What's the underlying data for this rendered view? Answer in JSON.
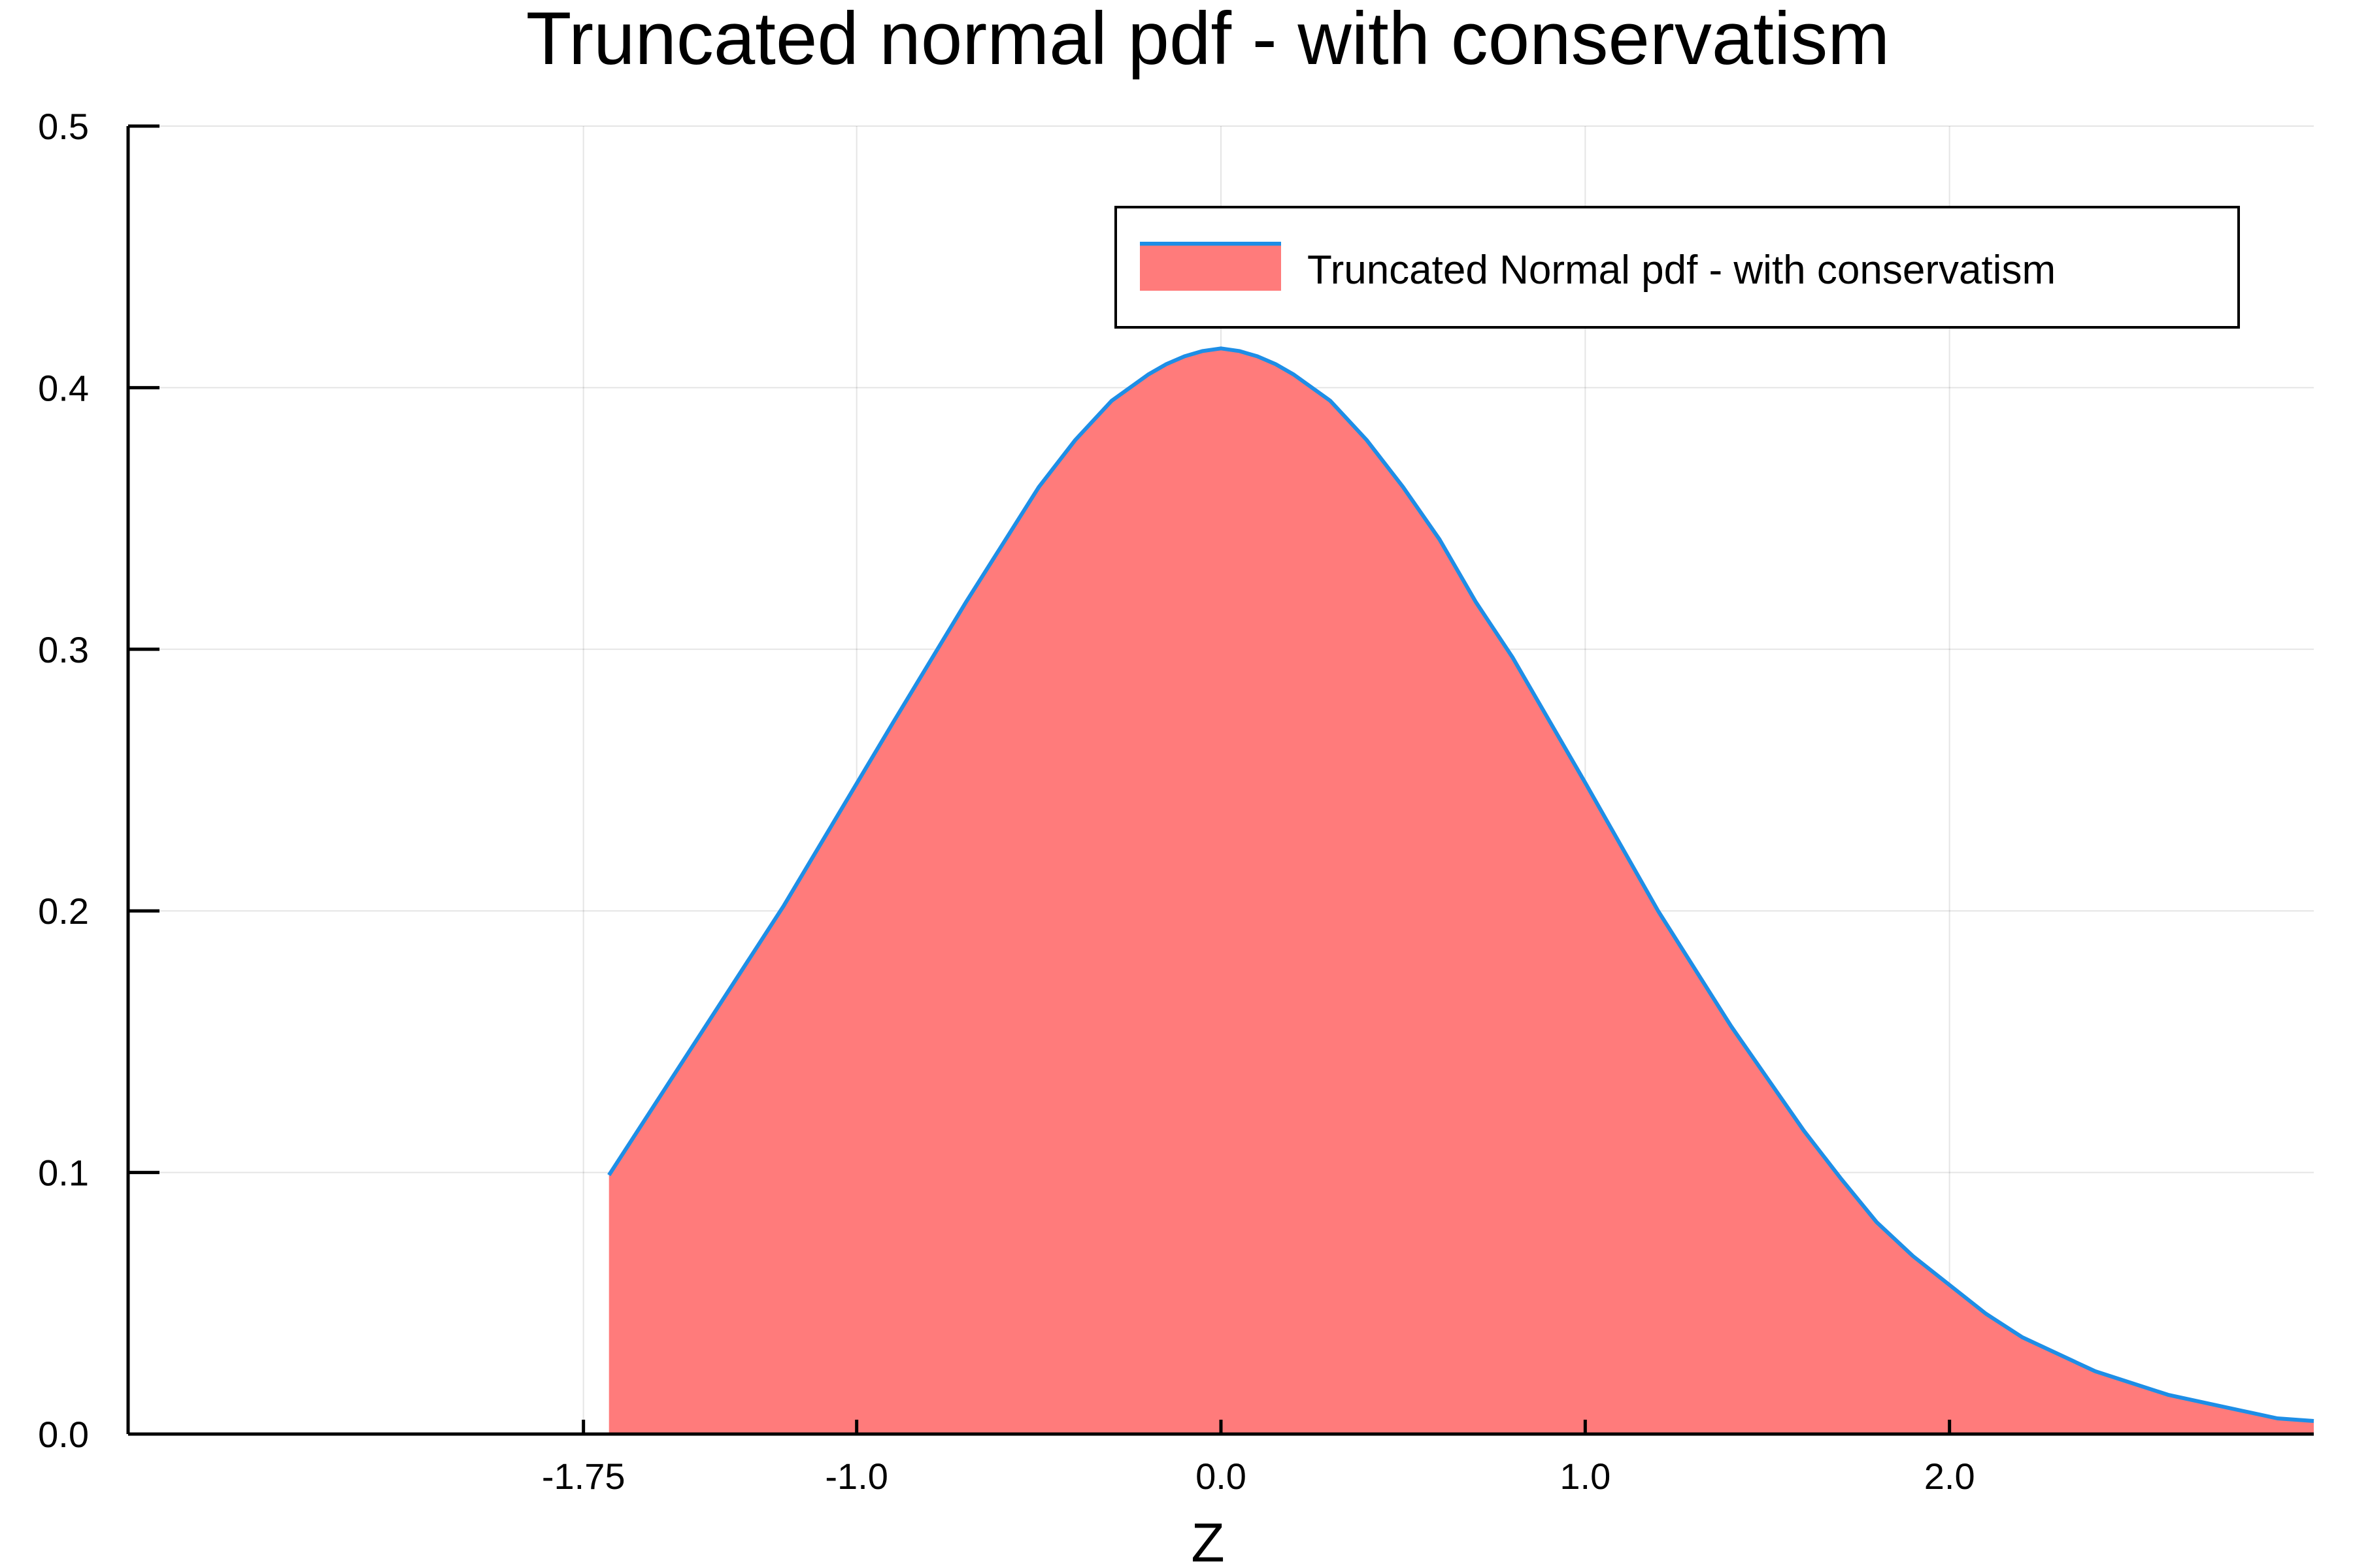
{
  "chart_data": {
    "type": "area",
    "title": "Truncated normal pdf - with conservatism",
    "xlabel": "Z",
    "ylabel": "",
    "xlim": [
      -3.0,
      3.0
    ],
    "ylim": [
      0.0,
      0.5
    ],
    "grid": true,
    "legend_position": "top-right",
    "x_ticks": [
      -1.75,
      -1.0,
      0.0,
      1.0,
      2.0
    ],
    "x_tick_labels": [
      "-1.75",
      "-1.0",
      "0.0",
      "1.0",
      "2.0"
    ],
    "y_ticks": [
      0.0,
      0.1,
      0.2,
      0.3,
      0.4,
      0.5
    ],
    "y_tick_labels": [
      "0.0",
      "0.1",
      "0.2",
      "0.3",
      "0.4",
      "0.5"
    ],
    "series": [
      {
        "name": "Truncated Normal pdf - with conservatism",
        "line_color": "#1e8ee6",
        "fill_color": "#ff7b7b",
        "x": [
          -1.68,
          -1.2,
          -0.9,
          -0.7,
          -0.5,
          -0.4,
          -0.3,
          -0.2,
          -0.15,
          -0.1,
          -0.05,
          0.0,
          0.05,
          0.1,
          0.15,
          0.2,
          0.3,
          0.4,
          0.5,
          0.6,
          0.7,
          0.8,
          1.0,
          1.2,
          1.4,
          1.6,
          1.7,
          1.8,
          1.9,
          2.0,
          2.1,
          2.2,
          2.4,
          2.6,
          2.8,
          2.9,
          3.0
        ],
        "y": [
          0.099,
          0.202,
          0.272,
          0.318,
          0.362,
          0.38,
          0.395,
          0.405,
          0.409,
          0.412,
          0.414,
          0.415,
          0.414,
          0.412,
          0.409,
          0.405,
          0.395,
          0.38,
          0.362,
          0.342,
          0.318,
          0.297,
          0.249,
          0.2,
          0.156,
          0.116,
          0.098,
          0.081,
          0.068,
          0.057,
          0.046,
          0.037,
          0.024,
          0.015,
          0.009,
          0.006,
          0.005
        ]
      }
    ]
  }
}
